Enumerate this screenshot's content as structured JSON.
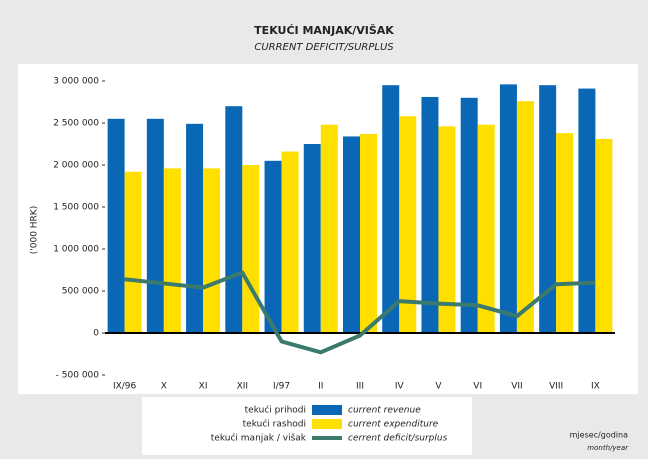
{
  "chart_data": {
    "type": "bar",
    "title": "TEKUĆI MANJAK/VIŠAK",
    "subtitle": "CURRENT DEFICIT/SURPLUS",
    "y_label": "('000 HRK)",
    "x_label": "mjesec/godina",
    "x_label_en": "month/year",
    "categories": [
      "IX/96",
      "X",
      "XI",
      "XII",
      "I/97",
      "II",
      "III",
      "IV",
      "V",
      "VI",
      "VII",
      "VIII",
      "IX"
    ],
    "series": [
      {
        "name": "current revenue",
        "name_local": "tekući prihodi",
        "type": "bar",
        "color": "#0a67b5",
        "values": [
          2550000,
          2550000,
          2490000,
          2700000,
          2050000,
          2250000,
          2340000,
          2950000,
          2810000,
          2800000,
          2960000,
          2950000,
          2910000
        ]
      },
      {
        "name": "current expenditure",
        "name_local": "tekući rashodi",
        "type": "bar",
        "color": "#ffdf00",
        "values": [
          1920000,
          1960000,
          1960000,
          2000000,
          2160000,
          2480000,
          2370000,
          2580000,
          2460000,
          2480000,
          2760000,
          2380000,
          2310000
        ]
      },
      {
        "name": "cerrent deficit/surplus",
        "name_local": "tekući manjak / višak",
        "type": "line",
        "color": "#3b7a6c",
        "values": [
          640000,
          590000,
          540000,
          720000,
          -100000,
          -230000,
          -30000,
          380000,
          350000,
          330000,
          200000,
          580000,
          600000
        ]
      }
    ],
    "ylim": [
      -500000,
      3000000
    ],
    "yticks": [
      {
        "value": -500000,
        "label": "- 500 000"
      },
      0,
      {
        "value": 500000,
        "label": "500 000"
      },
      {
        "value": 1000000,
        "label": "1 000 000"
      },
      {
        "value": 1500000,
        "label": "1 500 000"
      },
      {
        "value": 2000000,
        "label": "2 000 000"
      },
      {
        "value": 2500000,
        "label": "2 500 000"
      },
      {
        "value": 3000000,
        "label": "3 000 000"
      }
    ]
  }
}
